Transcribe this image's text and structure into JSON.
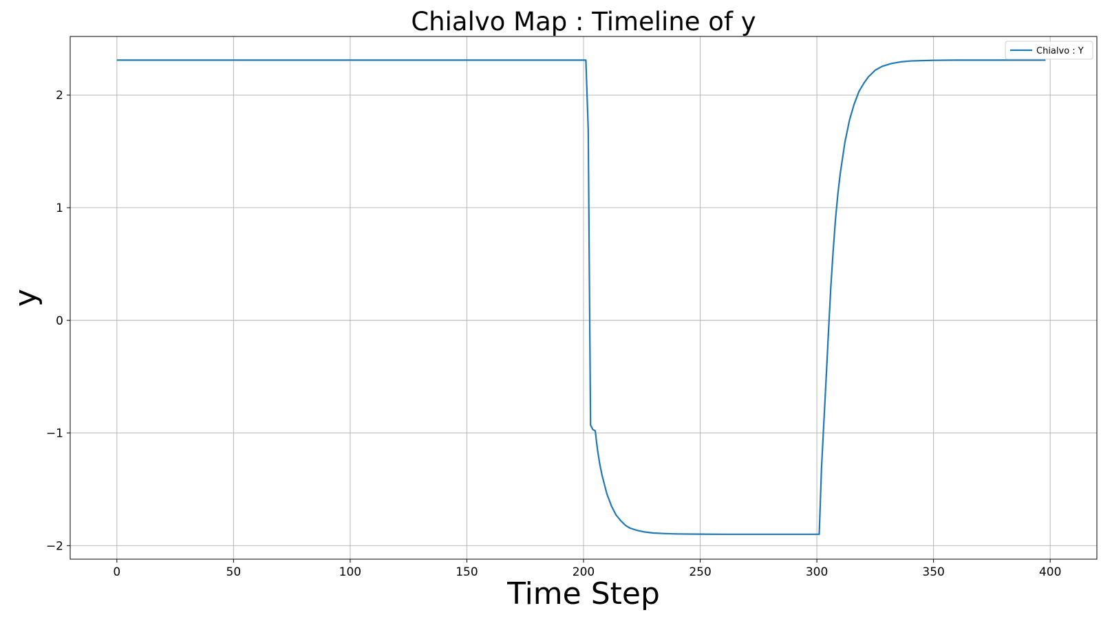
{
  "chart_data": {
    "type": "line",
    "title": "Chialvo Map : Timeline of y",
    "xlabel": "Time Step",
    "ylabel": "y",
    "xlim": [
      -20,
      420
    ],
    "ylim": [
      -2.12,
      2.52
    ],
    "xticks": [
      0,
      50,
      100,
      150,
      200,
      250,
      300,
      350,
      400
    ],
    "xtick_labels": [
      "0",
      "50",
      "100",
      "150",
      "200",
      "250",
      "300",
      "350",
      "400"
    ],
    "yticks": [
      -2,
      -1,
      0,
      1,
      2
    ],
    "ytick_labels": [
      "−2",
      "−1",
      "0",
      "1",
      "2"
    ],
    "grid": true,
    "legend_position": "top-right",
    "series": [
      {
        "name": "Chialvo : Y",
        "color": "#1f77b4",
        "x": [
          0,
          50,
          100,
          150,
          199,
          201,
          202,
          203,
          204,
          205,
          206,
          207,
          208,
          210,
          212,
          214,
          216,
          218,
          220,
          223,
          226,
          230,
          235,
          240,
          250,
          260,
          280,
          300,
          301,
          302,
          303,
          304,
          305,
          306,
          307,
          308,
          309,
          310,
          312,
          314,
          316,
          318,
          320,
          322,
          325,
          328,
          332,
          336,
          340,
          345,
          350,
          360,
          370,
          380,
          398
        ],
        "y": [
          2.31,
          2.31,
          2.31,
          2.31,
          2.31,
          2.31,
          1.7,
          -0.93,
          -0.97,
          -0.98,
          -1.15,
          -1.28,
          -1.38,
          -1.54,
          -1.65,
          -1.73,
          -1.78,
          -1.82,
          -1.845,
          -1.865,
          -1.878,
          -1.888,
          -1.893,
          -1.896,
          -1.898,
          -1.899,
          -1.899,
          -1.899,
          -1.899,
          -1.3,
          -0.9,
          -0.5,
          -0.1,
          0.3,
          0.62,
          0.9,
          1.12,
          1.3,
          1.58,
          1.78,
          1.92,
          2.03,
          2.1,
          2.16,
          2.22,
          2.255,
          2.28,
          2.295,
          2.302,
          2.306,
          2.308,
          2.31,
          2.31,
          2.31,
          2.31
        ]
      }
    ]
  }
}
